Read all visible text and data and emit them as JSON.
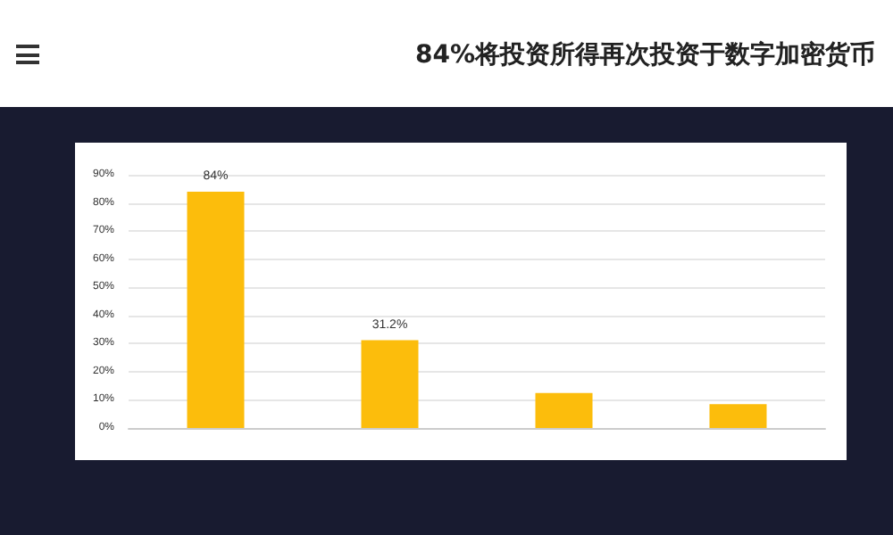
{
  "chart_data": {
    "type": "bar",
    "title": "84%将投资所得再次投资于数字加密货币",
    "categories": [
      null,
      null,
      null,
      null
    ],
    "values": [
      84,
      31.2,
      12.4,
      8.5
    ],
    "value_labels": [
      "84%",
      "31.2%",
      null,
      null
    ],
    "color": "#fcbd0c",
    "ylim": [
      0,
      90
    ],
    "yticks": [
      {
        "value": 0,
        "label": "0%"
      },
      {
        "value": 10,
        "label": "10%"
      },
      {
        "value": 20,
        "label": "20%"
      },
      {
        "value": 30,
        "label": "30%"
      },
      {
        "value": 40,
        "label": "40%"
      },
      {
        "value": 50,
        "label": "50%"
      },
      {
        "value": 60,
        "label": "60%"
      },
      {
        "value": 70,
        "label": "70%"
      },
      {
        "value": 80,
        "label": "80%"
      },
      {
        "value": 90,
        "label": "90%"
      }
    ],
    "grid": "y"
  }
}
